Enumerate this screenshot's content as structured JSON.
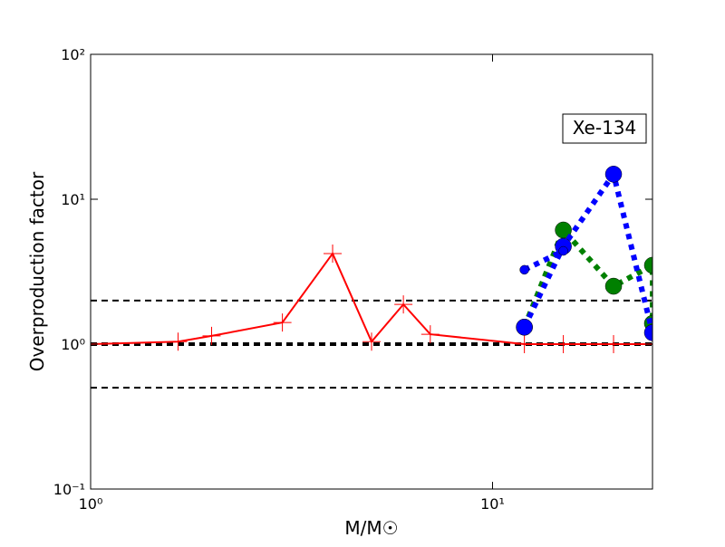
{
  "chart_data": {
    "type": "line",
    "xlabel": "M/M☉",
    "ylabel": "Overproduction factor",
    "annotation": "Xe-134",
    "xscale": "log",
    "yscale": "log",
    "xlim": [
      1,
      25
    ],
    "ylim": [
      0.1,
      100
    ],
    "xticks": [
      {
        "value": 1,
        "label": "10⁰"
      },
      {
        "value": 10,
        "label": "10¹"
      }
    ],
    "yticks": [
      {
        "value": 0.1,
        "label": "10⁻¹"
      },
      {
        "value": 1,
        "label": "10⁰"
      },
      {
        "value": 10,
        "label": "10¹"
      },
      {
        "value": 100,
        "label": "10²"
      }
    ],
    "hlines": [
      2,
      1,
      0.5
    ],
    "series": [
      {
        "color": "#ff0000",
        "linestyle": "solid",
        "marker": "plus",
        "x": [
          1,
          1.65,
          2,
          3,
          4,
          5,
          6,
          7,
          12,
          15,
          20,
          25
        ],
        "values": [
          1.0,
          1.04,
          1.14,
          1.41,
          4.22,
          1.04,
          1.88,
          1.17,
          1.0,
          1.0,
          1.0,
          1.0
        ]
      },
      {
        "color": "#008000",
        "linestyle": "dotted",
        "marker": "circle",
        "x": [
          12,
          15,
          20,
          25,
          25
        ],
        "values": [
          1.31,
          6.13,
          2.51,
          3.5,
          1.39
        ]
      },
      {
        "color": "#0000ff",
        "linestyle": "dotted",
        "marker": "circle",
        "x": [
          12,
          15,
          20,
          25
        ],
        "values": [
          1.31,
          4.73,
          14.9,
          1.2
        ]
      },
      {
        "color": "#0000ff",
        "linestyle": "dotted",
        "marker": "small-circle",
        "x": [
          12,
          15
        ],
        "values": [
          3.26,
          4.4
        ]
      }
    ]
  }
}
